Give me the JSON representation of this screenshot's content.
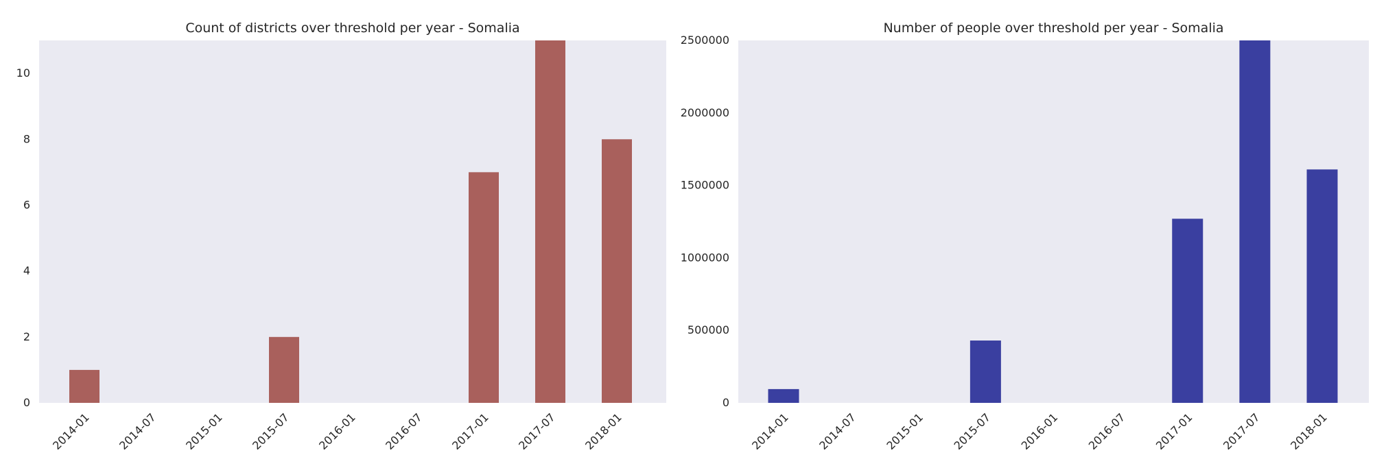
{
  "colors": {
    "background": "#ffffff",
    "plot_bg": "#eaeaf2",
    "text": "#262626",
    "bar_left": "#a9605c",
    "bar_right": "#3a3fa0"
  },
  "chart_data": [
    {
      "type": "bar",
      "title": "Count of districts over threshold per year - Somalia",
      "xlabel": "",
      "ylabel": "",
      "x_ticks": [
        "2014-01",
        "2014-07",
        "2015-01",
        "2015-07",
        "2016-01",
        "2016-07",
        "2017-01",
        "2017-07",
        "2018-01"
      ],
      "y_ticks": [
        "0",
        "2",
        "4",
        "6",
        "8",
        "10"
      ],
      "ylim": [
        0,
        11
      ],
      "grid": false,
      "series": [
        {
          "color": "#a9605c",
          "points": [
            {
              "x": "2014-01",
              "y": 1
            },
            {
              "x": "2015-07",
              "y": 2
            },
            {
              "x": "2017-01",
              "y": 7
            },
            {
              "x": "2017-07",
              "y": 11
            },
            {
              "x": "2018-01",
              "y": 8
            }
          ]
        }
      ]
    },
    {
      "type": "bar",
      "title": "Number of people over threshold per year - Somalia",
      "xlabel": "",
      "ylabel": "",
      "x_ticks": [
        "2014-01",
        "2014-07",
        "2015-01",
        "2015-07",
        "2016-01",
        "2016-07",
        "2017-01",
        "2017-07",
        "2018-01"
      ],
      "y_ticks": [
        "0",
        "500000",
        "1000000",
        "1500000",
        "2000000",
        "2500000"
      ],
      "ylim": [
        0,
        2500000
      ],
      "grid": false,
      "series": [
        {
          "color": "#3a3fa0",
          "points": [
            {
              "x": "2014-01",
              "y": 95000
            },
            {
              "x": "2015-07",
              "y": 430000
            },
            {
              "x": "2017-01",
              "y": 1270000
            },
            {
              "x": "2017-07",
              "y": 2500000
            },
            {
              "x": "2018-01",
              "y": 1610000
            }
          ]
        }
      ]
    }
  ]
}
